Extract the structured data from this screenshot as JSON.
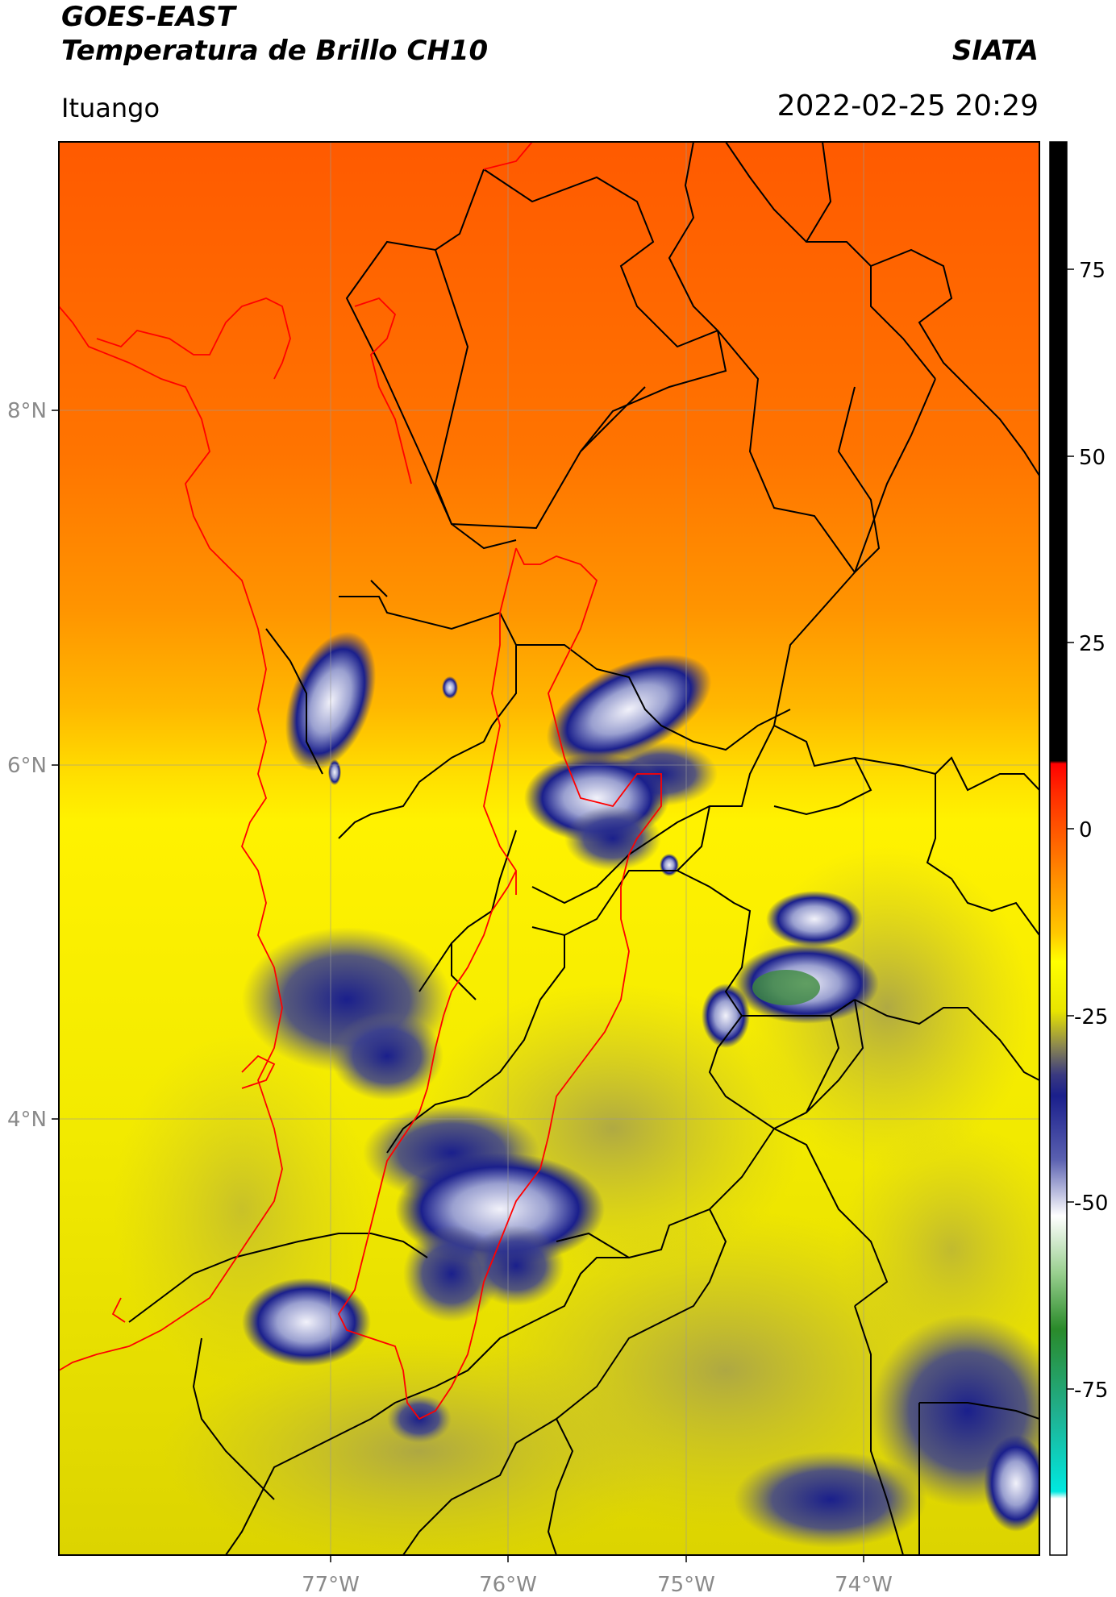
{
  "header": {
    "satellite": "GOES-EAST",
    "product": "Temperatura de Brillo CH10",
    "brand": "SIATA",
    "location": "Ituango",
    "timestamp": "2022-02-25 20:29"
  },
  "axes": {
    "lon_labels": [
      "77°W",
      "76°W",
      "75°W",
      "74°W"
    ],
    "lat_labels": [
      "8°N",
      "6°N",
      "4°N"
    ]
  },
  "colorbar": {
    "ticks": [
      "75",
      "50",
      "25",
      "0",
      "-25",
      "-50",
      "-75"
    ],
    "colors": [
      "#000000",
      "#ff0000",
      "#ff8c00",
      "#ffff00",
      "#1a1f8c",
      "#ffffff",
      "#2a8a2a",
      "#00e0e0"
    ]
  },
  "map": {
    "warm_color": "#ff5a00",
    "mid_color": "#ff9a00",
    "cool_color": "#f5f000",
    "cloud_dark": "#1a1f8c",
    "cloud_light": "#e8e8f4",
    "cloud_core": "#3c8a3c",
    "border_black": "#000000",
    "border_red": "#ff0000"
  }
}
